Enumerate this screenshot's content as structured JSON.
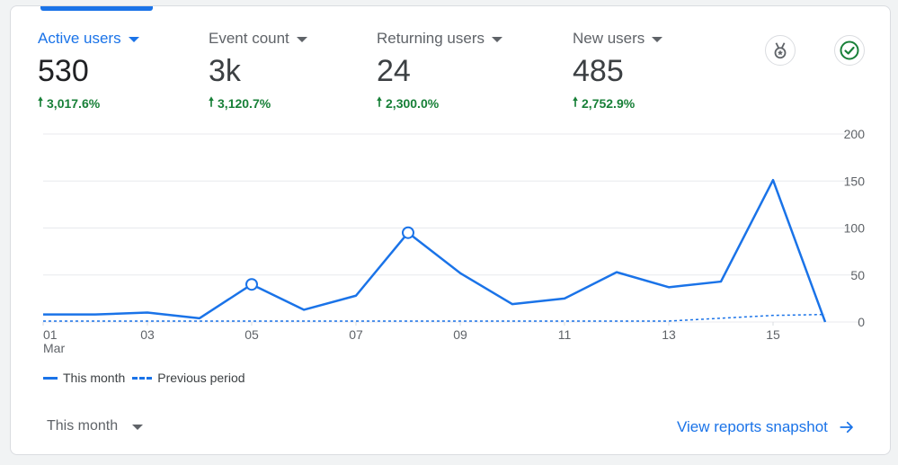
{
  "metrics": [
    {
      "label": "Active users",
      "value": "530",
      "change": "3,017.6%",
      "active": true
    },
    {
      "label": "Event count",
      "value": "3k",
      "change": "3,120.7%",
      "active": false
    },
    {
      "label": "Returning users",
      "value": "24",
      "change": "2,300.0%",
      "active": false
    },
    {
      "label": "New users",
      "value": "485",
      "change": "2,752.9%",
      "active": false
    }
  ],
  "icons": {
    "insights": "medal-badge-icon",
    "status": "check-circle-icon"
  },
  "colors": {
    "accent": "#1a73e8",
    "positive": "#188038",
    "gridline": "#e8eaed"
  },
  "chart_data": {
    "type": "line",
    "x": [
      "01",
      "02",
      "03",
      "04",
      "05",
      "06",
      "07",
      "08",
      "09",
      "10",
      "11",
      "12",
      "13",
      "14",
      "15",
      "16"
    ],
    "x_tick_labels": [
      "01",
      "03",
      "05",
      "07",
      "09",
      "11",
      "13",
      "15"
    ],
    "x_sublabel": "Mar",
    "y_ticks": [
      "200",
      "150",
      "100",
      "50",
      "0"
    ],
    "ylim": [
      0,
      200
    ],
    "markers_at": [
      "05",
      "08"
    ],
    "series": [
      {
        "name": "This month",
        "style": "solid",
        "values": [
          8,
          8,
          10,
          4,
          40,
          13,
          28,
          95,
          52,
          19,
          25,
          53,
          37,
          43,
          151,
          0
        ]
      },
      {
        "name": "Previous period",
        "style": "dashed",
        "values": [
          1,
          1,
          1,
          1,
          1,
          1,
          1,
          1,
          1,
          1,
          1,
          1,
          1,
          4,
          7,
          8
        ]
      }
    ],
    "legend_position": "bottom-left",
    "grid": true
  },
  "legend": {
    "this_month": "This month",
    "previous_period": "Previous period"
  },
  "footer": {
    "period_selector": "This month",
    "view_link": "View reports snapshot"
  }
}
